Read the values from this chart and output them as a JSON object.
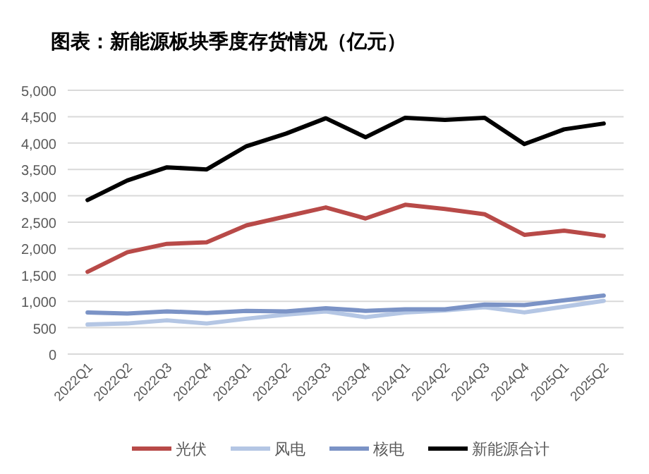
{
  "chart_data": {
    "type": "line",
    "title": "图表：新能源板块季度存货情况（亿元）",
    "categories": [
      "2022Q1",
      "2022Q2",
      "2022Q3",
      "2022Q4",
      "2023Q1",
      "2023Q2",
      "2023Q3",
      "2023Q4",
      "2024Q1",
      "2024Q2",
      "2024Q3",
      "2024Q4",
      "2025Q1",
      "2025Q2"
    ],
    "series": [
      {
        "name": "光伏",
        "color": "#b84a48",
        "values": [
          1560,
          1930,
          2090,
          2120,
          2440,
          2610,
          2780,
          2570,
          2830,
          2750,
          2650,
          2260,
          2340,
          2240
        ]
      },
      {
        "name": "风电",
        "color": "#b4c6e4",
        "values": [
          560,
          580,
          640,
          580,
          670,
          750,
          810,
          700,
          790,
          830,
          890,
          790,
          900,
          1010
        ]
      },
      {
        "name": "核电",
        "color": "#7b93c6",
        "values": [
          790,
          770,
          810,
          780,
          820,
          810,
          870,
          820,
          850,
          850,
          940,
          930,
          1020,
          1110
        ]
      },
      {
        "name": "新能源合计",
        "color": "#000000",
        "values": [
          2920,
          3290,
          3540,
          3500,
          3940,
          4180,
          4470,
          4110,
          4480,
          4440,
          4480,
          3980,
          4260,
          4370
        ]
      }
    ],
    "ylim": [
      0,
      5000
    ],
    "yticks": [
      0,
      500,
      {
        "value": 1000,
        "label": "1,000"
      },
      {
        "value": 1500,
        "label": "1,500"
      },
      {
        "value": 2000,
        "label": "2,000"
      },
      {
        "value": 2500,
        "label": "2,500"
      },
      {
        "value": 3000,
        "label": "3,000"
      },
      {
        "value": 3500,
        "label": "3,500"
      },
      {
        "value": 4000,
        "label": "4,000"
      },
      {
        "value": 4500,
        "label": "4,500"
      },
      {
        "value": 5000,
        "label": "5,000"
      }
    ],
    "grid": "y",
    "legend": "bottom",
    "line_style": "solid",
    "marker": "none"
  }
}
